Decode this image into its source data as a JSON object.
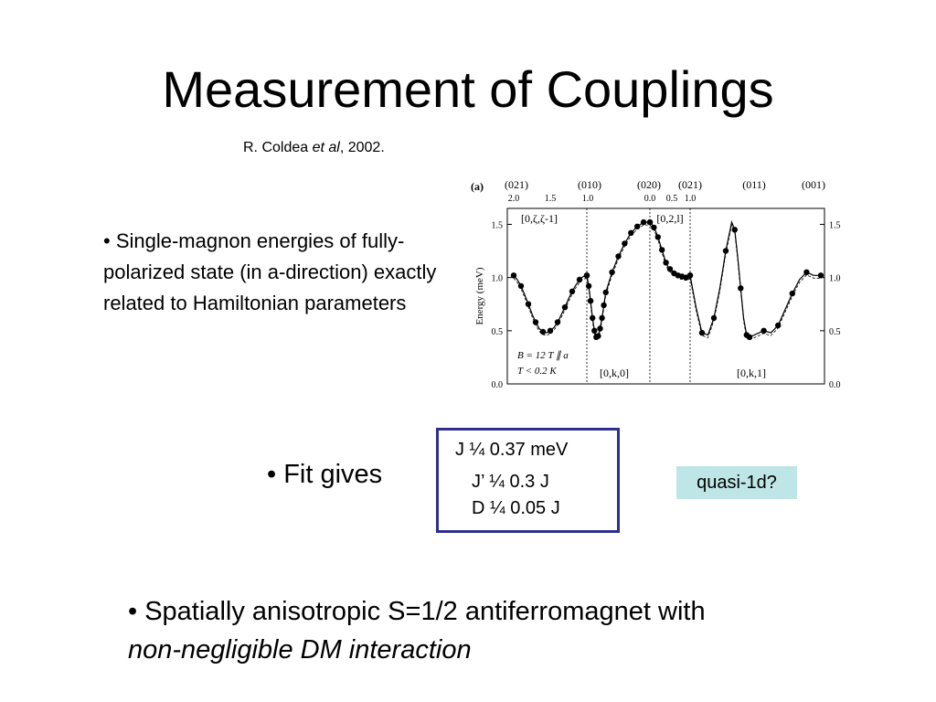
{
  "slide": {
    "title": "Measurement of Couplings",
    "citation": {
      "author": "R. Coldea ",
      "etal": "et al",
      "year": ", 2002."
    },
    "bullet_magnon": "• Single-magnon energies of fully-polarized state (in a-direction) exactly related to Hamiltonian parameters",
    "fit_label": "• Fit gives",
    "params": {
      "j": "J ¼ 0.37 meV",
      "jprime": "J’ ¼ 0.3 J",
      "d": "D ¼ 0.05 J"
    },
    "quasi": "quasi-1d?",
    "bottom_line1": "• Spatially anisotropic S=1/2 antiferromagnet with",
    "bottom_line2": "non-negligible DM interaction"
  },
  "chart_data": {
    "type": "scatter",
    "panel_label": "(a)",
    "ylabel": "Energy (meV)",
    "ylim": [
      0.0,
      1.65
    ],
    "yticks": [
      "0.0",
      "0.5",
      "1.0",
      "1.5"
    ],
    "top_reflections": [
      "(021)",
      "(010)",
      "(020)",
      "(021)",
      "(011)",
      "(001)"
    ],
    "top_ticks": [
      "2.0",
      "1.5",
      "1.0",
      "0.0",
      "0.5",
      "1.0"
    ],
    "panel_labels": [
      "[0,ζ,ζ-1]",
      "[0,2,l]",
      "[0,k,0]",
      "[0,k,1]"
    ],
    "annotation_lines": [
      "B = 12 T ∥ a",
      "T < 0.2 K"
    ],
    "segments": [
      {
        "name": "[0,ζ,ζ-1]",
        "x": [
          2.0,
          1.95,
          1.9,
          1.85,
          1.8,
          1.75,
          1.7,
          1.65,
          1.6,
          1.55,
          1.5,
          1.45,
          1.4,
          1.35,
          1.3,
          1.25,
          1.2,
          1.15,
          1.1,
          1.05,
          1.0
        ],
        "y": [
          1.02,
          0.98,
          0.92,
          0.84,
          0.75,
          0.66,
          0.58,
          0.52,
          0.49,
          0.48,
          0.5,
          0.53,
          0.58,
          0.65,
          0.72,
          0.8,
          0.87,
          0.93,
          0.98,
          1.01,
          1.02
        ]
      },
      {
        "name": "[0,k,0]",
        "x": [
          1.0,
          0.97,
          0.94,
          0.91,
          0.88,
          0.85,
          0.82,
          0.79,
          0.76,
          0.73,
          0.7,
          0.6,
          0.5,
          0.4,
          0.3,
          0.2,
          0.1,
          0.0
        ],
        "y": [
          1.02,
          0.92,
          0.78,
          0.62,
          0.5,
          0.44,
          0.45,
          0.52,
          0.62,
          0.74,
          0.86,
          1.05,
          1.2,
          1.32,
          1.42,
          1.48,
          1.52,
          1.52
        ]
      },
      {
        "name": "[0,2,l]",
        "x": [
          0.0,
          0.05,
          0.1,
          0.15,
          0.2,
          0.25,
          0.3,
          0.35,
          0.4,
          0.45,
          0.5,
          0.55,
          0.6,
          0.65,
          0.7,
          0.75,
          0.8,
          0.85,
          0.9,
          0.95,
          1.0
        ],
        "y": [
          1.52,
          1.5,
          1.47,
          1.43,
          1.38,
          1.32,
          1.26,
          1.2,
          1.14,
          1.1,
          1.08,
          1.06,
          1.04,
          1.03,
          1.02,
          1.01,
          1.01,
          1.0,
          1.0,
          1.0,
          1.02
        ]
      },
      {
        "name": "[0,k,1]",
        "x": [
          1.0,
          0.9,
          0.8,
          0.7,
          0.6,
          0.5,
          0.4,
          0.3,
          0.25,
          0.2,
          0.15,
          0.1,
          0.05,
          0.0
        ],
        "y": [
          1.02,
          0.72,
          0.48,
          0.46,
          0.62,
          0.9,
          1.25,
          1.52,
          1.45,
          1.2,
          0.9,
          0.62,
          0.46,
          0.44
        ]
      },
      {
        "name": "[0,k,1] end",
        "x": [
          0.0,
          0.1,
          0.2,
          0.3,
          0.4,
          0.5,
          0.6,
          0.7,
          0.8,
          0.9,
          1.0
        ],
        "y": [
          0.44,
          0.47,
          0.5,
          0.48,
          0.55,
          0.7,
          0.85,
          0.98,
          1.05,
          1.02,
          1.02
        ]
      }
    ]
  }
}
